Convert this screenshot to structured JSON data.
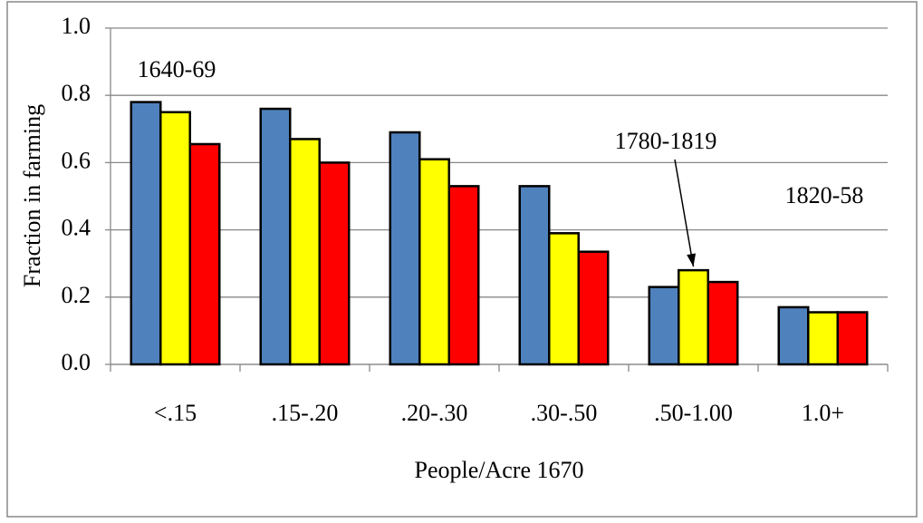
{
  "chart_data": {
    "type": "bar",
    "x_label": "People/Acre 1670",
    "y_label": "Fraction in farming",
    "categories": [
      "<.15",
      ".15-.20",
      ".20-.30",
      ".30-.50",
      ".50-1.00",
      "1.0+"
    ],
    "series": [
      {
        "name": "1640-69",
        "color": "#4f81bd",
        "values": [
          0.78,
          0.76,
          0.69,
          0.53,
          0.23,
          0.17
        ]
      },
      {
        "name": "1780-1819",
        "color": "#ffff00",
        "values": [
          0.75,
          0.67,
          0.61,
          0.39,
          0.28,
          0.155
        ]
      },
      {
        "name": "1820-58",
        "color": "#ff0000",
        "values": [
          0.655,
          0.6,
          0.53,
          0.335,
          0.245,
          0.155
        ]
      }
    ],
    "ylim": [
      0,
      1
    ],
    "yticks": [
      {
        "value": 0,
        "label": "0.0"
      },
      0.2,
      0.4,
      0.6,
      0.8,
      {
        "value": 1,
        "label": "1.0"
      }
    ],
    "grid": true
  }
}
